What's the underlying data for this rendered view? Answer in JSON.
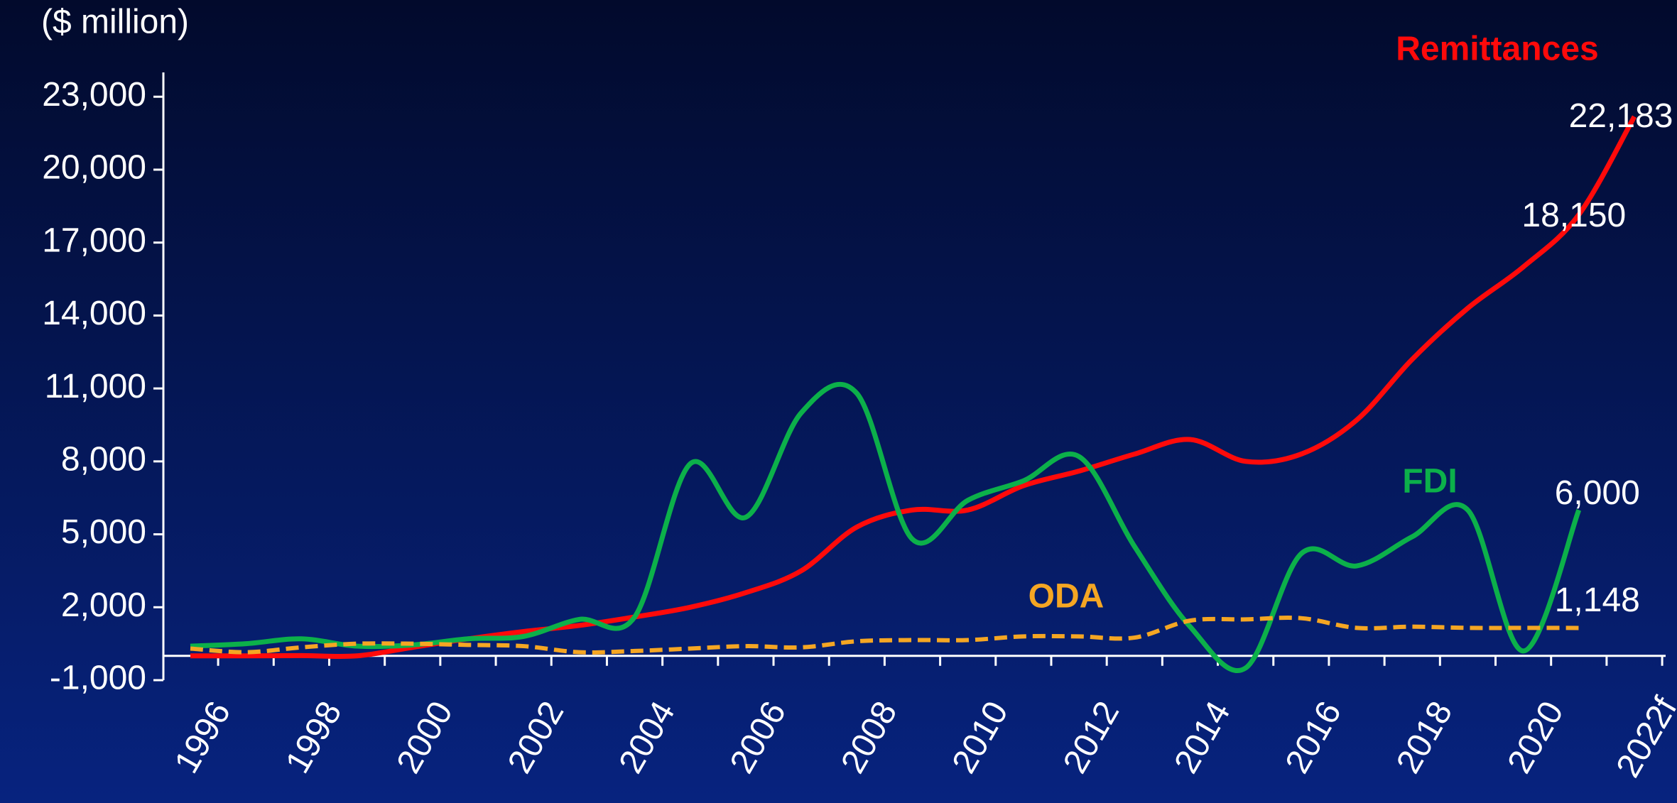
{
  "chart_data": {
    "type": "line",
    "y_label": "($ million)",
    "categories": [
      "1996",
      null,
      "1998",
      null,
      "2000",
      null,
      "2002",
      null,
      "2004",
      null,
      "2006",
      null,
      "2008",
      null,
      "2010",
      null,
      "2012",
      null,
      "2014",
      null,
      "2016",
      null,
      "2018",
      null,
      "2020",
      null,
      "2022f"
    ],
    "series": [
      {
        "name": "Remittances",
        "color": "#ff0a0a",
        "dashed": false,
        "values": [
          0,
          0,
          10,
          0,
          350,
          700,
          1000,
          1250,
          1600,
          2000,
          2600,
          3500,
          5300,
          6000,
          6000,
          7000,
          7600,
          8300,
          8900,
          8000,
          8300,
          9700,
          12200,
          14300,
          16000,
          18150,
          22183
        ],
        "value_labels": [
          null,
          null,
          null,
          null,
          null,
          null,
          null,
          null,
          null,
          null,
          null,
          null,
          null,
          null,
          null,
          null,
          null,
          null,
          null,
          null,
          null,
          null,
          null,
          null,
          null,
          "18,150",
          "22,183"
        ]
      },
      {
        "name": "FDI",
        "color": "#0cb04a",
        "dashed": false,
        "values": [
          400,
          500,
          700,
          400,
          450,
          700,
          800,
          1500,
          1600,
          7900,
          5700,
          10000,
          10800,
          4800,
          6400,
          7200,
          8200,
          4500,
          1200,
          -500,
          4200,
          3700,
          4900,
          6000,
          200,
          6000,
          null
        ],
        "value_labels": [
          null,
          null,
          null,
          null,
          null,
          null,
          null,
          null,
          null,
          null,
          null,
          null,
          null,
          null,
          null,
          null,
          null,
          null,
          null,
          null,
          null,
          null,
          null,
          null,
          null,
          "6,000",
          null
        ]
      },
      {
        "name": "ODA",
        "color": "#f5a623",
        "dashed": true,
        "values": [
          300,
          150,
          350,
          500,
          500,
          450,
          400,
          150,
          200,
          300,
          400,
          350,
          600,
          650,
          650,
          800,
          800,
          750,
          1450,
          1500,
          1550,
          1150,
          1200,
          1150,
          1150,
          1148,
          null
        ],
        "value_labels": [
          null,
          null,
          null,
          null,
          null,
          null,
          null,
          null,
          null,
          null,
          null,
          null,
          null,
          null,
          null,
          null,
          null,
          null,
          null,
          null,
          null,
          null,
          null,
          null,
          null,
          "1,148",
          null
        ]
      }
    ],
    "ylim": [
      -1000,
      24000
    ],
    "yticks": [
      {
        "value": -1000,
        "label": "-1,000"
      },
      {
        "value": 2000,
        "label": "2,000"
      },
      {
        "value": 5000,
        "label": "5,000"
      },
      {
        "value": 8000,
        "label": "8,000"
      },
      {
        "value": 11000,
        "label": "11,000"
      },
      {
        "value": 14000,
        "label": "14,000"
      },
      {
        "value": 17000,
        "label": "17,000"
      },
      {
        "value": 20000,
        "label": "20,000"
      },
      {
        "value": 23000,
        "label": "23,000"
      }
    ],
    "grid": false
  }
}
